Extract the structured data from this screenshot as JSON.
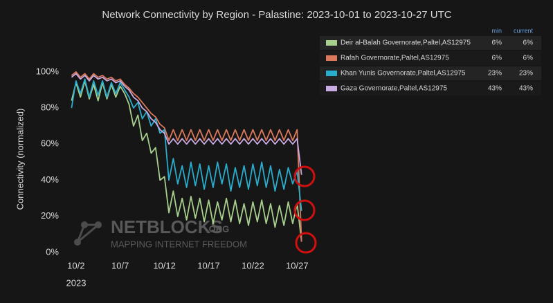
{
  "chart_data": {
    "type": "line",
    "title": "Network Connectivity by Region - Palastine: 2023-10-01 to 2023-10-27 UTC",
    "y_label": "Connectivity (normalized)",
    "x_year_label": "2023",
    "watermark": {
      "name": "NETBLOCKS",
      "suffix": ".ORG",
      "tagline": "MAPPING INTERNET FREEDOM"
    },
    "legend_columns": [
      "min",
      "current"
    ],
    "xlim": [
      1,
      27.6
    ],
    "xticks": [
      {
        "value": 2,
        "label": "10/2"
      },
      {
        "value": 7,
        "label": "10/7"
      },
      {
        "value": 12,
        "label": "10/12"
      },
      {
        "value": 17,
        "label": "10/17"
      },
      {
        "value": 22,
        "label": "10/22"
      },
      {
        "value": 27,
        "label": "10/27"
      }
    ],
    "ylim": [
      0,
      103
    ],
    "yticks": [
      {
        "value": 0,
        "label": "0%"
      },
      {
        "value": 20,
        "label": "20%"
      },
      {
        "value": 40,
        "label": "40%"
      },
      {
        "value": 60,
        "label": "60%"
      },
      {
        "value": 80,
        "label": "80%"
      },
      {
        "value": 100,
        "label": "100%"
      }
    ],
    "grid": false,
    "x": [
      1.5,
      2,
      2.5,
      3,
      3.5,
      4,
      4.5,
      5,
      5.5,
      6,
      6.5,
      7,
      7.5,
      8,
      8.5,
      9,
      9.5,
      10,
      10.5,
      11,
      11.5,
      12,
      12.5,
      13,
      13.5,
      14,
      14.5,
      15,
      15.5,
      16,
      16.5,
      17,
      17.5,
      18,
      18.5,
      19,
      19.5,
      20,
      20.5,
      21,
      21.5,
      22,
      22.5,
      23,
      23.5,
      24,
      24.5,
      25,
      25.5,
      26,
      26.5,
      27,
      27.5
    ],
    "series": [
      {
        "name": "Deir al-Balah Governorate,Paltel,AS12975",
        "color": "#a8d08d",
        "stats": [
          6,
          6
        ],
        "stats_labels": [
          "6%",
          "6%"
        ],
        "values": [
          84,
          94,
          86,
          95,
          85,
          93,
          84,
          94,
          85,
          93,
          86,
          92,
          88,
          82,
          70,
          76,
          62,
          66,
          55,
          58,
          40,
          42,
          22,
          34,
          20,
          30,
          18,
          31,
          19,
          30,
          17,
          29,
          16,
          28,
          18,
          30,
          17,
          29,
          16,
          27,
          15,
          28,
          17,
          29,
          16,
          27,
          14,
          26,
          15,
          28,
          16,
          27,
          6
        ]
      },
      {
        "name": "Rafah Governorate,Paltel,AS12975",
        "color": "#d9785a",
        "stats": [
          6,
          6
        ],
        "stats_labels": [
          "6%",
          "6%"
        ],
        "values": [
          98,
          100,
          97,
          99,
          96,
          99,
          97,
          98,
          96,
          97,
          95,
          96,
          93,
          91,
          88,
          86,
          83,
          80,
          77,
          75,
          71,
          69,
          62,
          68,
          62,
          68,
          62,
          68,
          62,
          68,
          62,
          68,
          62,
          68,
          62,
          68,
          62,
          68,
          62,
          68,
          62,
          68,
          62,
          68,
          62,
          68,
          62,
          68,
          62,
          68,
          62,
          68,
          6
        ]
      },
      {
        "name": "Khan Yunis Governorate,Paltel,AS12975",
        "color": "#2aaccc",
        "stats": [
          23,
          23
        ],
        "stats_labels": [
          "23%",
          "23%"
        ],
        "values": [
          80,
          95,
          88,
          96,
          86,
          95,
          87,
          95,
          86,
          94,
          88,
          94,
          90,
          86,
          80,
          83,
          74,
          78,
          70,
          74,
          66,
          68,
          40,
          52,
          38,
          48,
          36,
          50,
          37,
          49,
          35,
          48,
          36,
          50,
          38,
          49,
          34,
          47,
          36,
          48,
          35,
          49,
          37,
          50,
          36,
          48,
          34,
          46,
          35,
          47,
          38,
          45,
          23
        ]
      },
      {
        "name": "Gaza Governorate,Paltel,AS12975",
        "color": "#c9abe3",
        "stats": [
          43,
          43
        ],
        "stats_labels": [
          "43%",
          "43%"
        ],
        "values": [
          97,
          99,
          96,
          98,
          95,
          98,
          96,
          97,
          95,
          96,
          94,
          95,
          92,
          90,
          86,
          84,
          80,
          78,
          74,
          72,
          68,
          66,
          60,
          63,
          60,
          63,
          60,
          63,
          60,
          63,
          60,
          63,
          60,
          63,
          60,
          63,
          60,
          63,
          60,
          63,
          60,
          63,
          60,
          63,
          60,
          63,
          60,
          63,
          60,
          63,
          60,
          63,
          43
        ]
      }
    ]
  }
}
